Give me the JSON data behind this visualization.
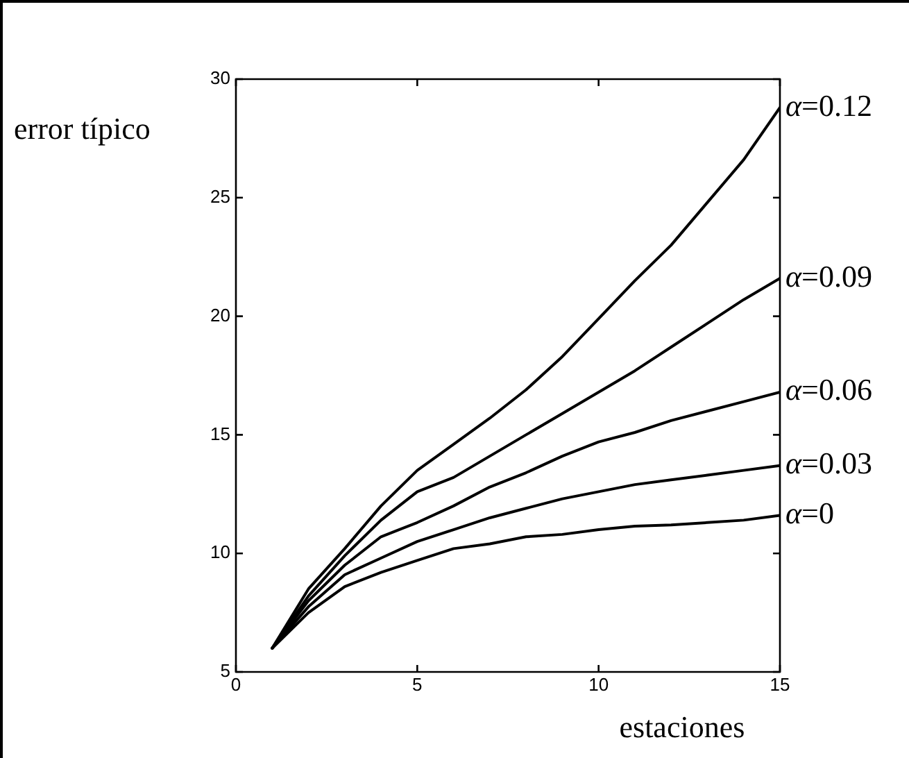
{
  "chart_data": {
    "type": "line",
    "xlabel": "estaciones",
    "ylabel": "error típico",
    "x": [
      1,
      2,
      3,
      4,
      5,
      6,
      7,
      8,
      9,
      10,
      11,
      12,
      13,
      14,
      15
    ],
    "series": [
      {
        "name": "α=0.12",
        "color": "#000000",
        "values": [
          6,
          8.5,
          10.2,
          12.0,
          13.5,
          14.6,
          15.7,
          16.9,
          18.3,
          19.9,
          21.5,
          23.0,
          24.8,
          26.6,
          28.8
        ]
      },
      {
        "name": "α=0.09",
        "color": "#000000",
        "values": [
          6,
          8.2,
          9.9,
          11.4,
          12.6,
          13.2,
          14.1,
          15.0,
          15.9,
          16.8,
          17.7,
          18.7,
          19.7,
          20.7,
          21.6
        ]
      },
      {
        "name": "α=0.06",
        "color": "#000000",
        "values": [
          6,
          8.0,
          9.5,
          10.7,
          11.3,
          12.0,
          12.8,
          13.4,
          14.1,
          14.7,
          15.1,
          15.6,
          16.0,
          16.4,
          16.8
        ]
      },
      {
        "name": "α=0.03",
        "color": "#000000",
        "values": [
          6,
          7.75,
          9.1,
          9.8,
          10.5,
          11.0,
          11.5,
          11.9,
          12.3,
          12.6,
          12.9,
          13.1,
          13.3,
          13.5,
          13.7
        ]
      },
      {
        "name": "α=0",
        "color": "#000000",
        "values": [
          6,
          7.5,
          8.6,
          9.2,
          9.7,
          10.2,
          10.4,
          10.7,
          10.8,
          11.0,
          11.15,
          11.2,
          11.3,
          11.4,
          11.6
        ]
      }
    ],
    "xlim": [
      0,
      15
    ],
    "xticks": [
      0,
      5,
      10,
      15
    ],
    "ylim": [
      5,
      30
    ],
    "yticks": [
      5,
      10,
      15,
      20,
      25,
      30
    ],
    "grid": false,
    "legend": "right",
    "marker": "none",
    "line_style": "solid"
  }
}
